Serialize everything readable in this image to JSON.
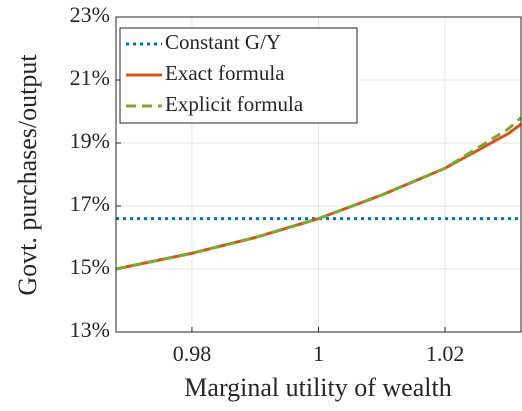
{
  "chart_data": {
    "type": "line",
    "xlabel": "Marginal utility of wealth",
    "ylabel": "Govt. purchases/output",
    "xlim": [
      0.968,
      1.032
    ],
    "ylim": [
      13,
      23
    ],
    "xticks": [
      0.98,
      1,
      1.02
    ],
    "yticks": [
      {
        "value": 13,
        "label": "13%"
      },
      {
        "value": 15,
        "label": "15%"
      },
      {
        "value": 17,
        "label": "17%"
      },
      {
        "value": 19,
        "label": "19%"
      },
      {
        "value": 21,
        "label": "21%"
      },
      {
        "value": 23,
        "label": "23%"
      }
    ],
    "grid": true,
    "legend": "upper left",
    "series": [
      {
        "name": "Constant G/Y",
        "color": "#0072bd",
        "dash": "dotted",
        "x": [
          0.968,
          1.032
        ],
        "values": [
          16.6,
          16.6
        ]
      },
      {
        "name": "Exact formula",
        "color": "#d95319",
        "dash": "solid",
        "x": [
          0.968,
          0.98,
          0.99,
          1.0,
          1.01,
          1.02,
          1.03,
          1.032
        ],
        "values": [
          15.0,
          15.5,
          16.0,
          16.6,
          17.35,
          18.2,
          19.3,
          19.6
        ]
      },
      {
        "name": "Explicit formula",
        "color": "#77ac30",
        "dash": "dashed",
        "x": [
          0.968,
          0.98,
          0.99,
          1.0,
          1.01,
          1.02,
          1.03,
          1.032
        ],
        "values": [
          15.0,
          15.5,
          16.0,
          16.6,
          17.35,
          18.2,
          19.45,
          19.8
        ]
      }
    ]
  }
}
